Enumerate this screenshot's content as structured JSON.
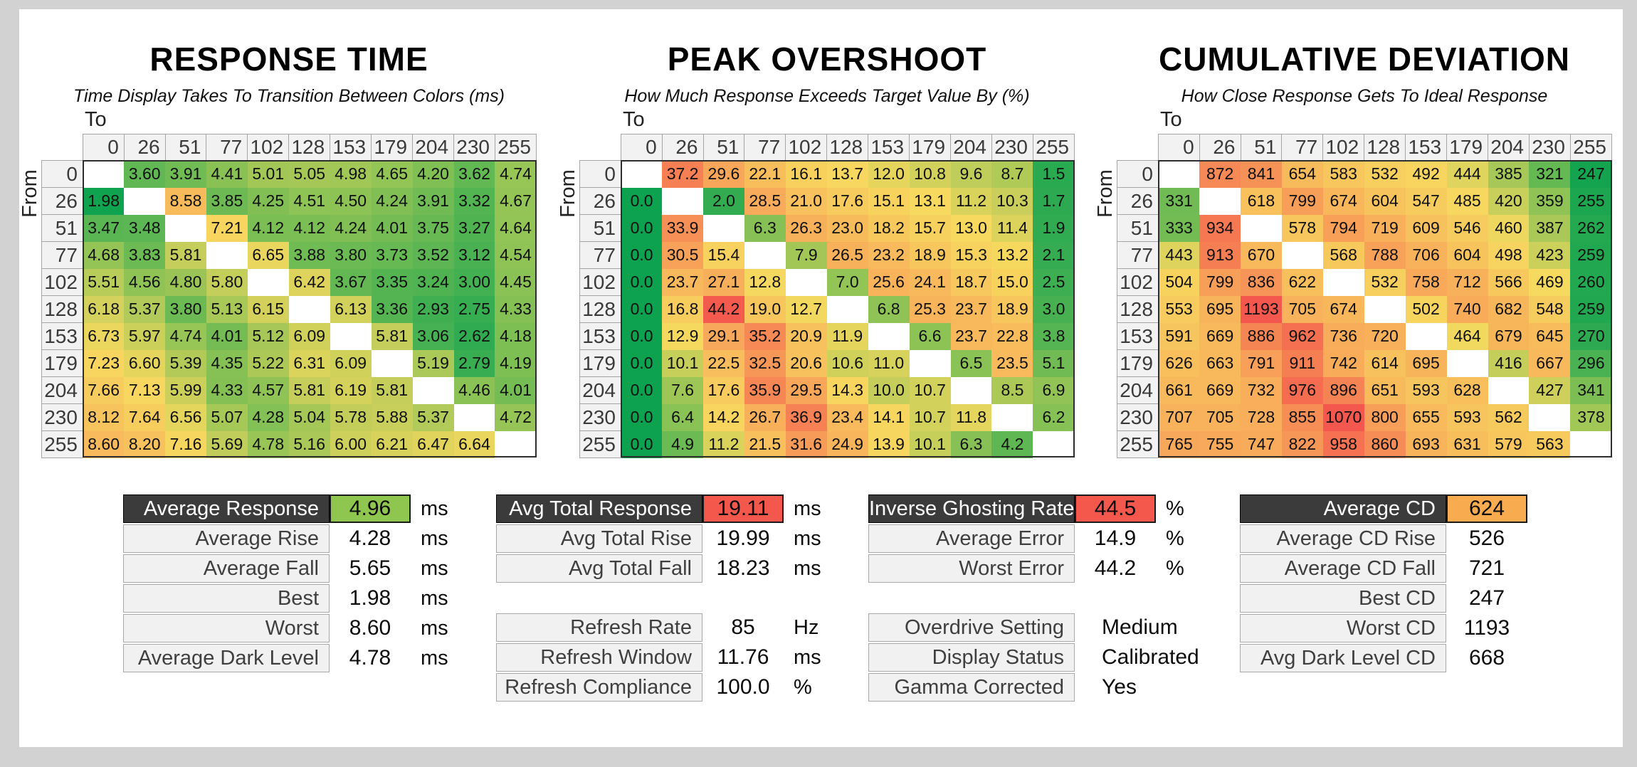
{
  "page": {
    "background": "#d2d2d2",
    "card_background": "#ffffff"
  },
  "axis": {
    "to": "To",
    "from": "From"
  },
  "colors": {
    "ramp": [
      "#0ca24f",
      "#8bc255",
      "#f7d95f",
      "#f8a95a",
      "#f4574d"
    ],
    "diagonal_cell": "#ffffff",
    "header_cell_bg": "#f2f2f2",
    "dark_header_bg": "#3b3b3b",
    "value_green": "#8fc64f",
    "value_red": "#f4584d",
    "value_orange": "#f9ab50"
  },
  "chart_data": [
    {
      "type": "heatmap",
      "title": "RESPONSE TIME",
      "subtitle": "Time Display Takes To Transition Between Colors (ms)",
      "unit": "ms",
      "decimals": 2,
      "categories": [
        0,
        26,
        51,
        77,
        102,
        128,
        153,
        179,
        204,
        230,
        255
      ],
      "scale": {
        "green_at": 1.9,
        "yellow_at": 7.0,
        "red_at": 12.0
      },
      "rows": [
        [
          null,
          3.6,
          3.91,
          4.41,
          5.01,
          5.05,
          4.98,
          4.65,
          4.2,
          3.62,
          4.74
        ],
        [
          1.98,
          null,
          8.58,
          3.85,
          4.25,
          4.51,
          4.5,
          4.24,
          3.91,
          3.32,
          4.67
        ],
        [
          3.47,
          3.48,
          null,
          7.21,
          4.12,
          4.12,
          4.24,
          4.01,
          3.75,
          3.27,
          4.64
        ],
        [
          4.68,
          3.83,
          5.81,
          null,
          6.65,
          3.88,
          3.8,
          3.73,
          3.52,
          3.12,
          4.54
        ],
        [
          5.51,
          4.56,
          4.8,
          5.8,
          null,
          6.42,
          3.67,
          3.35,
          3.24,
          3.0,
          4.45
        ],
        [
          6.18,
          5.37,
          3.8,
          5.13,
          6.15,
          null,
          6.13,
          3.36,
          2.93,
          2.75,
          4.33
        ],
        [
          6.73,
          5.97,
          4.74,
          4.01,
          5.12,
          6.09,
          null,
          5.81,
          3.06,
          2.62,
          4.18
        ],
        [
          7.23,
          6.6,
          5.39,
          4.35,
          5.22,
          6.31,
          6.09,
          null,
          5.19,
          2.79,
          4.19
        ],
        [
          7.66,
          7.13,
          5.99,
          4.33,
          4.57,
          5.81,
          6.19,
          5.81,
          null,
          4.46,
          4.01
        ],
        [
          8.12,
          7.64,
          6.56,
          5.07,
          4.28,
          5.04,
          5.78,
          5.88,
          5.37,
          null,
          4.72
        ],
        [
          8.6,
          8.2,
          7.16,
          5.69,
          4.78,
          5.16,
          6.0,
          6.21,
          6.47,
          6.64,
          null
        ]
      ]
    },
    {
      "type": "heatmap",
      "title": "PEAK OVERSHOOT",
      "subtitle": "How Much Response Exceeds Target Value By (%)",
      "unit": "%",
      "decimals": 1,
      "categories": [
        0,
        26,
        51,
        77,
        102,
        128,
        153,
        179,
        204,
        230,
        255
      ],
      "scale": {
        "green_at": 0,
        "yellow_at": 13.0,
        "red_at": 45.0
      },
      "rows": [
        [
          null,
          37.2,
          29.6,
          22.1,
          16.1,
          13.7,
          12.0,
          10.8,
          9.6,
          8.7,
          1.5
        ],
        [
          0.0,
          null,
          2.0,
          28.5,
          21.0,
          17.6,
          15.1,
          13.1,
          11.2,
          10.3,
          1.7
        ],
        [
          0.0,
          33.9,
          null,
          6.3,
          26.3,
          23.0,
          18.2,
          15.7,
          13.0,
          11.4,
          1.9
        ],
        [
          0.0,
          30.5,
          15.4,
          null,
          7.9,
          26.5,
          23.2,
          18.9,
          15.3,
          13.2,
          2.1
        ],
        [
          0.0,
          23.7,
          27.1,
          12.8,
          null,
          7.0,
          25.6,
          24.1,
          18.7,
          15.0,
          2.5
        ],
        [
          0.0,
          16.8,
          44.2,
          19.0,
          12.7,
          null,
          6.8,
          25.3,
          23.7,
          18.9,
          3.0
        ],
        [
          0.0,
          12.9,
          29.1,
          35.2,
          20.9,
          11.9,
          null,
          6.6,
          23.7,
          22.8,
          3.8
        ],
        [
          0.0,
          10.1,
          22.5,
          32.5,
          20.6,
          10.6,
          11.0,
          null,
          6.5,
          23.5,
          5.1
        ],
        [
          0.0,
          7.6,
          17.6,
          35.9,
          29.5,
          14.3,
          10.0,
          10.7,
          null,
          8.5,
          6.9
        ],
        [
          0.0,
          6.4,
          14.2,
          26.7,
          36.9,
          23.4,
          14.1,
          10.7,
          11.8,
          null,
          6.2
        ],
        [
          0.0,
          4.9,
          11.2,
          21.5,
          31.6,
          24.9,
          13.9,
          10.1,
          6.3,
          4.2,
          null
        ]
      ]
    },
    {
      "type": "heatmap",
      "title": "CUMULATIVE DEVIATION",
      "subtitle": "How Close Response Gets To Ideal Response",
      "unit": "",
      "decimals": 0,
      "categories": [
        0,
        26,
        51,
        77,
        102,
        128,
        153,
        179,
        204,
        230,
        255
      ],
      "scale": {
        "green_at": 240,
        "yellow_at": 470,
        "red_at": 1050
      },
      "rows": [
        [
          null,
          872,
          841,
          654,
          583,
          532,
          492,
          444,
          385,
          321,
          247
        ],
        [
          331,
          null,
          618,
          799,
          674,
          604,
          547,
          485,
          420,
          359,
          255
        ],
        [
          333,
          934,
          null,
          578,
          794,
          719,
          609,
          546,
          460,
          387,
          262
        ],
        [
          443,
          913,
          670,
          null,
          568,
          788,
          706,
          604,
          498,
          423,
          259
        ],
        [
          504,
          799,
          836,
          622,
          null,
          532,
          758,
          712,
          566,
          469,
          260
        ],
        [
          553,
          695,
          1193,
          705,
          674,
          null,
          502,
          740,
          682,
          548,
          259
        ],
        [
          591,
          669,
          886,
          962,
          736,
          720,
          null,
          464,
          679,
          645,
          270
        ],
        [
          626,
          663,
          791,
          911,
          742,
          614,
          695,
          null,
          416,
          667,
          296
        ],
        [
          661,
          669,
          732,
          976,
          896,
          651,
          593,
          628,
          null,
          427,
          341
        ],
        [
          707,
          705,
          728,
          855,
          1070,
          800,
          655,
          593,
          562,
          null,
          378
        ],
        [
          765,
          755,
          747,
          822,
          958,
          860,
          693,
          631,
          579,
          563,
          null
        ]
      ]
    }
  ],
  "summary_tables": [
    {
      "id": "response-summary",
      "rows": [
        {
          "label": "Average Response",
          "value": "4.96",
          "unit": "ms",
          "header": true,
          "value_bg": "#8fc64f"
        },
        {
          "label": "Average Rise",
          "value": "4.28",
          "unit": "ms"
        },
        {
          "label": "Average Fall",
          "value": "5.65",
          "unit": "ms"
        },
        {
          "label": "Best",
          "value": "1.98",
          "unit": "ms"
        },
        {
          "label": "Worst",
          "value": "8.60",
          "unit": "ms"
        },
        {
          "label": "Average Dark Level",
          "value": "4.78",
          "unit": "ms"
        }
      ]
    },
    {
      "id": "total-response-summary",
      "rows": [
        {
          "label": "Avg Total Response",
          "value": "19.11",
          "unit": "ms",
          "header": true,
          "value_bg": "#f4584d"
        },
        {
          "label": "Avg Total Rise",
          "value": "19.99",
          "unit": "ms"
        },
        {
          "label": "Avg Total Fall",
          "value": "18.23",
          "unit": "ms"
        }
      ]
    },
    {
      "id": "refresh-summary",
      "rows": [
        {
          "label": "Refresh Rate",
          "value": "85",
          "unit": "Hz"
        },
        {
          "label": "Refresh Window",
          "value": "11.76",
          "unit": "ms"
        },
        {
          "label": "Refresh Compliance",
          "value": "100.0",
          "unit": "%"
        }
      ]
    },
    {
      "id": "ghosting-summary",
      "rows": [
        {
          "label": "Inverse Ghosting Rate",
          "value": "44.5",
          "unit": "%",
          "header": true,
          "value_bg": "#f4584d"
        },
        {
          "label": "Average Error",
          "value": "14.9",
          "unit": "%"
        },
        {
          "label": "Worst Error",
          "value": "44.2",
          "unit": "%"
        }
      ]
    },
    {
      "id": "settings-summary",
      "rows": [
        {
          "label": "Overdrive Setting",
          "value": "Medium",
          "unit": "",
          "text_value": true
        },
        {
          "label": "Display Status",
          "value": "Calibrated",
          "unit": "",
          "text_value": true
        },
        {
          "label": "Gamma Corrected",
          "value": "Yes",
          "unit": "",
          "text_value": true
        }
      ]
    },
    {
      "id": "cd-summary",
      "rows": [
        {
          "label": "Average CD",
          "value": "624",
          "unit": "",
          "header": true,
          "value_bg": "#f9ab50"
        },
        {
          "label": "Average CD Rise",
          "value": "526",
          "unit": ""
        },
        {
          "label": "Average CD Fall",
          "value": "721",
          "unit": ""
        },
        {
          "label": "Best CD",
          "value": "247",
          "unit": ""
        },
        {
          "label": "Worst CD",
          "value": "1193",
          "unit": ""
        },
        {
          "label": "Avg Dark Level CD",
          "value": "668",
          "unit": ""
        }
      ]
    }
  ]
}
